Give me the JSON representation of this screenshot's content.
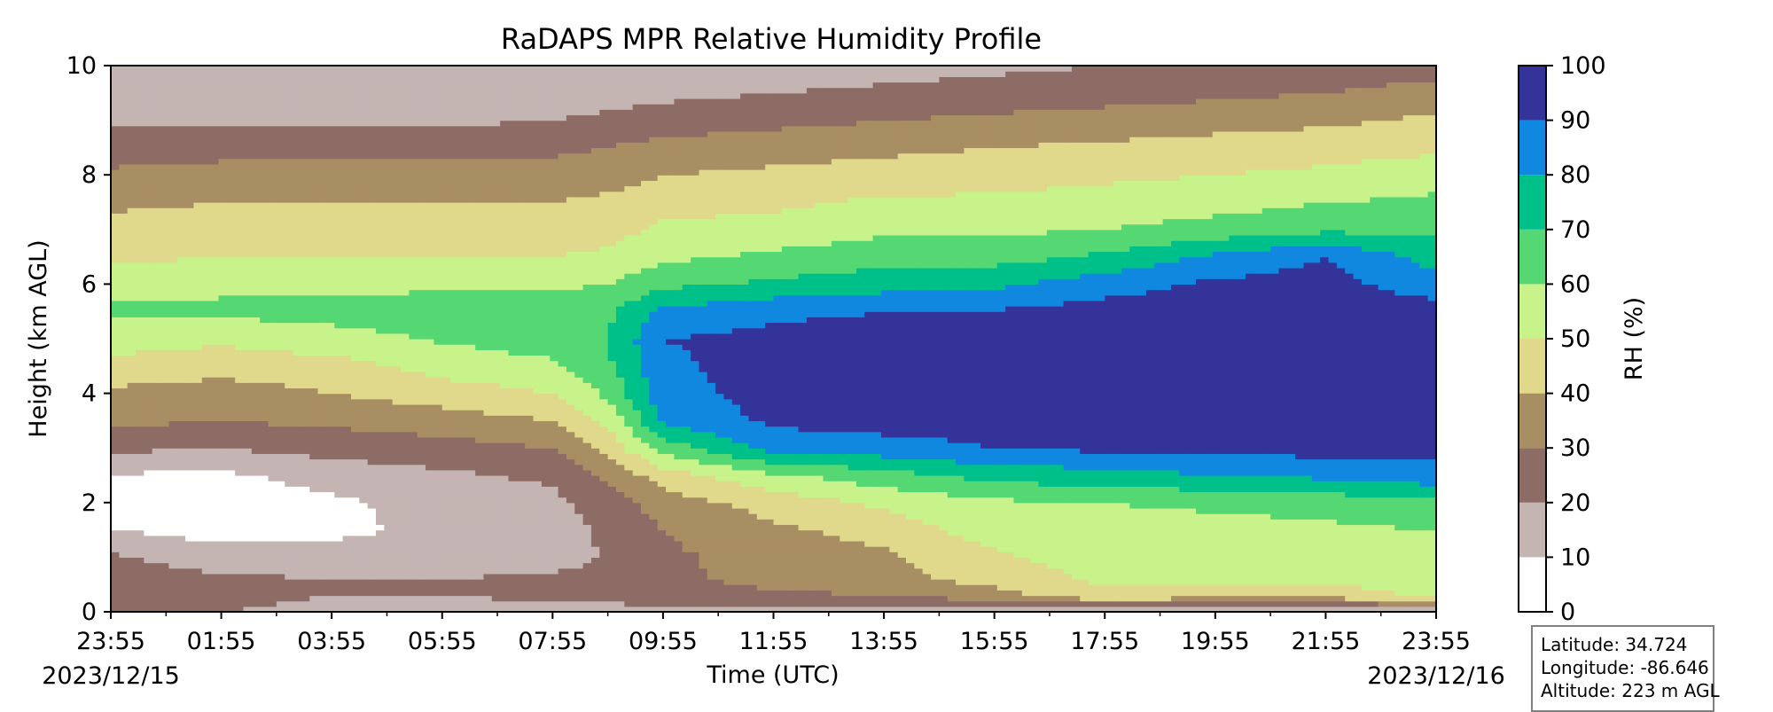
{
  "chart_data": {
    "type": "heatmap",
    "plot_style": "filled contour",
    "title": "RaDAPS MPR Relative Humidity Profile",
    "xlabel": "Time (UTC)",
    "ylabel": "Height (km AGL)",
    "x_ticks": [
      "23:55",
      "01:55",
      "03:55",
      "05:55",
      "07:55",
      "09:55",
      "11:55",
      "13:55",
      "15:55",
      "17:55",
      "19:55",
      "21:55",
      "23:55"
    ],
    "x_tick_hours": [
      0,
      2,
      4,
      6,
      8,
      10,
      12,
      14,
      16,
      18,
      20,
      22,
      24
    ],
    "xlim_hours": [
      0,
      24
    ],
    "start_date_label": "2023/12/15",
    "end_date_label": "2023/12/16",
    "y_ticks": [
      "0",
      "2",
      "4",
      "6",
      "8",
      "10"
    ],
    "ylim": [
      0,
      10
    ],
    "colorbar": {
      "label": "RH (%)",
      "levels": [
        0,
        10,
        20,
        30,
        40,
        50,
        60,
        70,
        80,
        90,
        100
      ],
      "tick_labels": [
        "0",
        "10",
        "20",
        "30",
        "40",
        "50",
        "60",
        "70",
        "80",
        "90",
        "100"
      ],
      "colors": [
        "#ffffff",
        "#c4b5b3",
        "#8e6c66",
        "#a88f63",
        "#e0d88a",
        "#c8f28a",
        "#55d874",
        "#00c08a",
        "#1088e0",
        "#333399"
      ]
    },
    "rh_field": {
      "time_hours": [
        0,
        2,
        4,
        6,
        8,
        9,
        10,
        12,
        14,
        16,
        18,
        20,
        22,
        24
      ],
      "height_km": [
        0,
        0.3,
        0.6,
        1,
        1.5,
        2,
        2.5,
        3,
        3.5,
        4,
        4.5,
        5,
        5.5,
        6,
        6.5,
        7,
        7.5,
        8,
        8.5,
        9,
        9.5,
        10
      ],
      "rh_percent": [
        [
          22,
          20,
          18,
          16,
          15,
          15,
          16,
          16,
          14,
          12,
          12,
          12,
          12,
          12
        ],
        [
          24,
          22,
          20,
          20,
          22,
          24,
          26,
          28,
          30,
          36,
          48,
          44,
          44,
          52
        ],
        [
          25,
          22,
          20,
          20,
          22,
          25,
          28,
          33,
          36,
          44,
          52,
          53,
          53,
          55
        ],
        [
          22,
          14,
          14,
          14,
          15,
          21,
          28,
          34,
          38,
          48,
          55,
          56,
          56,
          58
        ],
        [
          10,
          6,
          8,
          12,
          15,
          22,
          30,
          38,
          44,
          55,
          56,
          56,
          58,
          60
        ],
        [
          6,
          5,
          8,
          14,
          17,
          25,
          35,
          44,
          52,
          58,
          60,
          62,
          64,
          68
        ],
        [
          9,
          8,
          14,
          18,
          22,
          32,
          45,
          58,
          66,
          74,
          76,
          80,
          82,
          86
        ],
        [
          22,
          20,
          24,
          26,
          30,
          44,
          64,
          84,
          86,
          90,
          92,
          93,
          94,
          94
        ],
        [
          32,
          30,
          32,
          35,
          40,
          52,
          82,
          92,
          94,
          94,
          95,
          95,
          96,
          96
        ],
        [
          38,
          35,
          40,
          45,
          50,
          62,
          86,
          94,
          95,
          95,
          96,
          96,
          96,
          96
        ],
        [
          46,
          44,
          46,
          54,
          58,
          68,
          88,
          94,
          95,
          95,
          96,
          96,
          96,
          96
        ],
        [
          55,
          52,
          56,
          61,
          65,
          70,
          90,
          93,
          94,
          95,
          96,
          96,
          96,
          96
        ],
        [
          62,
          62,
          64,
          65,
          66,
          68,
          82,
          88,
          90,
          91,
          94,
          95,
          96,
          95
        ],
        [
          56,
          58,
          58,
          58,
          58,
          60,
          68,
          72,
          76,
          78,
          86,
          92,
          94,
          84
        ],
        [
          48,
          50,
          50,
          50,
          50,
          52,
          58,
          62,
          66,
          66,
          72,
          82,
          90,
          76
        ],
        [
          44,
          44,
          44,
          44,
          44,
          46,
          52,
          54,
          58,
          58,
          60,
          64,
          68,
          68
        ],
        [
          38,
          40,
          40,
          40,
          40,
          42,
          46,
          48,
          52,
          52,
          54,
          56,
          60,
          62
        ],
        [
          32,
          34,
          34,
          34,
          34,
          36,
          40,
          42,
          44,
          46,
          48,
          50,
          52,
          56
        ],
        [
          25,
          26,
          26,
          28,
          28,
          30,
          34,
          36,
          38,
          40,
          42,
          44,
          46,
          48
        ],
        [
          18,
          18,
          18,
          18,
          20,
          22,
          24,
          27,
          30,
          32,
          34,
          36,
          38,
          42
        ],
        [
          14,
          14,
          14,
          14,
          15,
          16,
          18,
          20,
          22,
          24,
          26,
          28,
          30,
          34
        ],
        [
          12,
          12,
          12,
          12,
          12,
          13,
          14,
          15,
          16,
          18,
          20,
          22,
          24,
          26
        ]
      ]
    }
  },
  "info_box": {
    "latitude": "Latitude: 34.724",
    "longitude": "Longitude: -86.646",
    "altitude": "Altitude: 223 m AGL"
  }
}
